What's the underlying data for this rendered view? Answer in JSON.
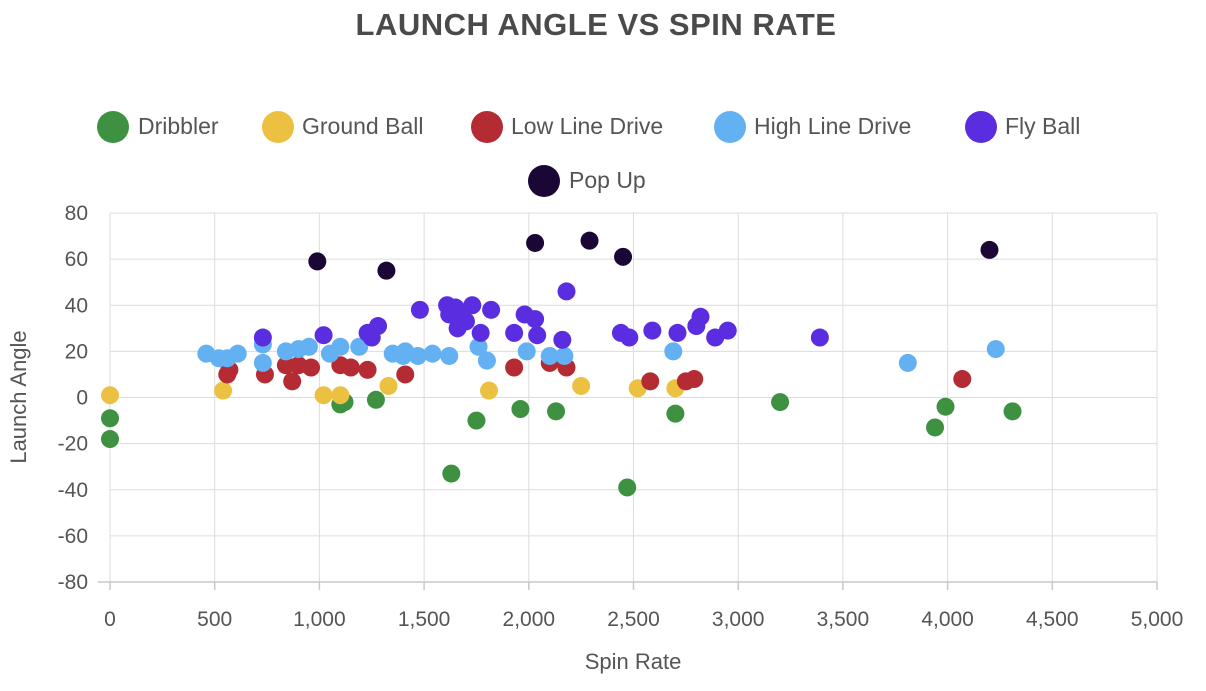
{
  "chart_data": {
    "type": "scatter",
    "title": "LAUNCH ANGLE VS SPIN RATE",
    "xlabel": "Spin Rate",
    "ylabel": "Launch Angle",
    "xlim": [
      0,
      5000
    ],
    "ylim": [
      -80,
      80
    ],
    "x_ticks": [
      0,
      500,
      1000,
      1500,
      2000,
      2500,
      3000,
      3500,
      4000,
      4500,
      5000
    ],
    "x_tick_labels": [
      "0",
      "500",
      "1,000",
      "1,500",
      "2,000",
      "2,500",
      "3,000",
      "3,500",
      "4,000",
      "4,500",
      "5,000"
    ],
    "y_ticks": [
      80,
      60,
      40,
      20,
      0,
      -20,
      -40,
      -60,
      -80
    ],
    "y_tick_labels": [
      "80",
      "60",
      "40",
      "20",
      "0",
      "-20",
      "-40",
      "-60",
      "-80"
    ],
    "grid": true,
    "legend_position": "top",
    "series": [
      {
        "name": "Dribbler",
        "color": "#3f9142",
        "points": [
          [
            0,
            -9
          ],
          [
            0,
            -18
          ],
          [
            1100,
            -3
          ],
          [
            1120,
            -2
          ],
          [
            1270,
            -1
          ],
          [
            1630,
            -33
          ],
          [
            1750,
            -10
          ],
          [
            1960,
            -5
          ],
          [
            2130,
            -6
          ],
          [
            2470,
            -39
          ],
          [
            2700,
            -7
          ],
          [
            3200,
            -2
          ],
          [
            3940,
            -13
          ],
          [
            3990,
            -4
          ],
          [
            4310,
            -6
          ]
        ]
      },
      {
        "name": "Ground Ball",
        "color": "#ecc142",
        "points": [
          [
            0,
            1
          ],
          [
            540,
            3
          ],
          [
            1020,
            1
          ],
          [
            1100,
            1
          ],
          [
            1330,
            5
          ],
          [
            1810,
            3
          ],
          [
            2250,
            5
          ],
          [
            2520,
            4
          ],
          [
            2700,
            4
          ]
        ]
      },
      {
        "name": "Low Line Drive",
        "color": "#b52b33",
        "points": [
          [
            560,
            10
          ],
          [
            570,
            12
          ],
          [
            740,
            10
          ],
          [
            840,
            14
          ],
          [
            870,
            7
          ],
          [
            900,
            14
          ],
          [
            960,
            13
          ],
          [
            1100,
            14
          ],
          [
            1150,
            13
          ],
          [
            1230,
            12
          ],
          [
            1410,
            10
          ],
          [
            1930,
            13
          ],
          [
            2100,
            15
          ],
          [
            2180,
            13
          ],
          [
            2580,
            7
          ],
          [
            2750,
            7
          ],
          [
            2790,
            8
          ],
          [
            4070,
            8
          ]
        ]
      },
      {
        "name": "High Line Drive",
        "color": "#63b1f2",
        "points": [
          [
            460,
            19
          ],
          [
            520,
            17
          ],
          [
            560,
            17
          ],
          [
            610,
            19
          ],
          [
            730,
            15
          ],
          [
            730,
            23
          ],
          [
            840,
            20
          ],
          [
            900,
            21
          ],
          [
            950,
            22
          ],
          [
            1050,
            19
          ],
          [
            1100,
            22
          ],
          [
            1190,
            22
          ],
          [
            1350,
            19
          ],
          [
            1400,
            18
          ],
          [
            1410,
            20
          ],
          [
            1470,
            18
          ],
          [
            1540,
            19
          ],
          [
            1620,
            18
          ],
          [
            1760,
            22
          ],
          [
            1800,
            16
          ],
          [
            1990,
            20
          ],
          [
            2100,
            18
          ],
          [
            2170,
            18
          ],
          [
            2690,
            20
          ],
          [
            3810,
            15
          ],
          [
            4230,
            21
          ]
        ]
      },
      {
        "name": "Fly Ball",
        "color": "#5b2de0",
        "points": [
          [
            730,
            26
          ],
          [
            1020,
            27
          ],
          [
            1230,
            28
          ],
          [
            1250,
            26
          ],
          [
            1280,
            31
          ],
          [
            1480,
            38
          ],
          [
            1610,
            40
          ],
          [
            1620,
            36
          ],
          [
            1650,
            39
          ],
          [
            1660,
            30
          ],
          [
            1680,
            36
          ],
          [
            1700,
            33
          ],
          [
            1730,
            40
          ],
          [
            1770,
            28
          ],
          [
            1820,
            38
          ],
          [
            1930,
            28
          ],
          [
            1980,
            36
          ],
          [
            2030,
            34
          ],
          [
            2040,
            27
          ],
          [
            2160,
            25
          ],
          [
            2180,
            46
          ],
          [
            2440,
            28
          ],
          [
            2480,
            26
          ],
          [
            2590,
            29
          ],
          [
            2710,
            28
          ],
          [
            2800,
            31
          ],
          [
            2820,
            35
          ],
          [
            2890,
            26
          ],
          [
            2950,
            29
          ],
          [
            3390,
            26
          ]
        ]
      },
      {
        "name": "Pop Up",
        "color": "#1b0735",
        "points": [
          [
            990,
            59
          ],
          [
            1320,
            55
          ],
          [
            2030,
            67
          ],
          [
            2290,
            68
          ],
          [
            2450,
            61
          ],
          [
            4200,
            64
          ]
        ]
      }
    ]
  }
}
